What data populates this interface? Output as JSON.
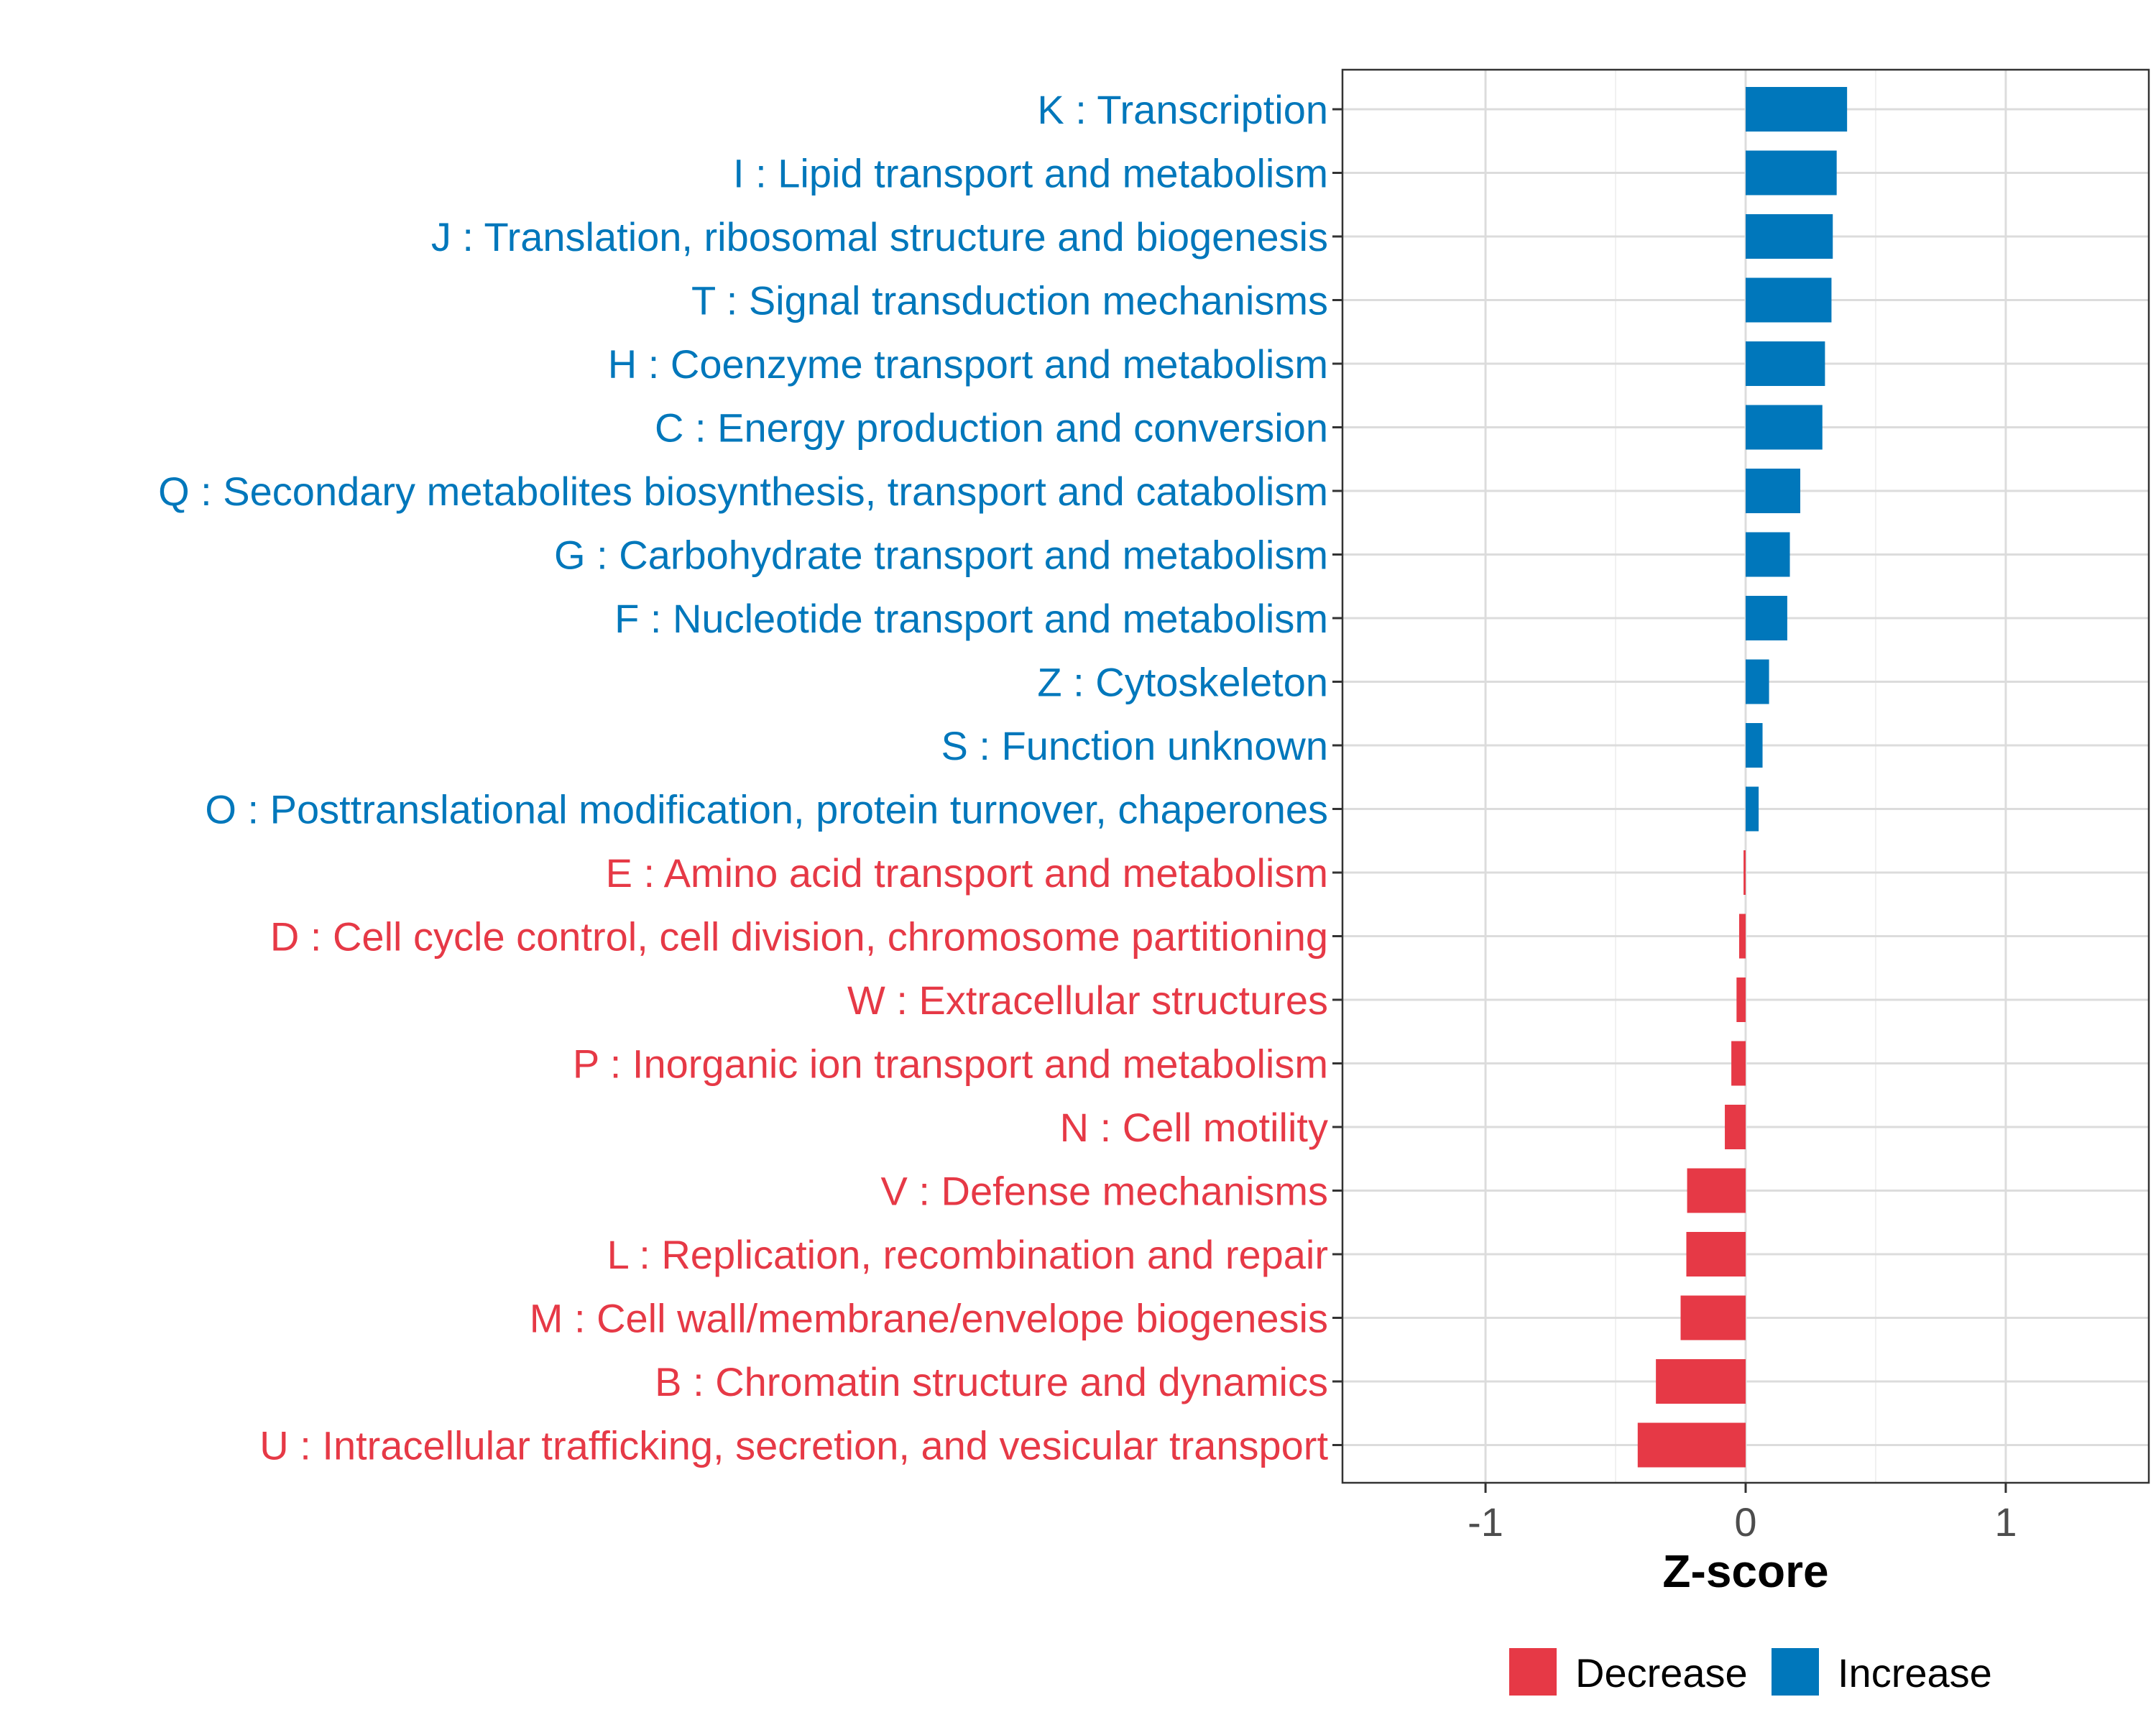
{
  "colors": {
    "increase": "#0077bb",
    "decrease": "#e63946",
    "grid": "#dcdcdc",
    "axis": "#333333"
  },
  "chart_data": {
    "type": "bar",
    "orientation": "horizontal",
    "title": "",
    "xlabel": "Z-score",
    "ylabel": "",
    "xlim": [
      -1.55,
      1.55
    ],
    "xticks": [
      -1,
      0,
      1
    ],
    "xtick_labels": [
      "-1",
      "0",
      "1"
    ],
    "grid": true,
    "legend_position": "bottom",
    "legend": [
      {
        "name": "Decrease",
        "color_key": "decrease"
      },
      {
        "name": "Increase",
        "color_key": "increase"
      }
    ],
    "bars": [
      {
        "label": "K : Transcription",
        "value": 0.39,
        "group": "Increase"
      },
      {
        "label": "I : Lipid transport and metabolism",
        "value": 0.35,
        "group": "Increase"
      },
      {
        "label": "J : Translation, ribosomal structure and biogenesis",
        "value": 0.335,
        "group": "Increase"
      },
      {
        "label": "T : Signal transduction mechanisms",
        "value": 0.33,
        "group": "Increase"
      },
      {
        "label": "H : Coenzyme transport and metabolism",
        "value": 0.305,
        "group": "Increase"
      },
      {
        "label": "C : Energy production and conversion",
        "value": 0.295,
        "group": "Increase"
      },
      {
        "label": "Q : Secondary metabolites biosynthesis, transport and catabolism",
        "value": 0.21,
        "group": "Increase"
      },
      {
        "label": "G : Carbohydrate transport and metabolism",
        "value": 0.17,
        "group": "Increase"
      },
      {
        "label": "F : Nucleotide transport and metabolism",
        "value": 0.16,
        "group": "Increase"
      },
      {
        "label": "Z : Cytoskeleton",
        "value": 0.09,
        "group": "Increase"
      },
      {
        "label": "S : Function unknown",
        "value": 0.065,
        "group": "Increase"
      },
      {
        "label": "O : Posttranslational modification, protein turnover, chaperones",
        "value": 0.05,
        "group": "Increase"
      },
      {
        "label": "E : Amino acid transport and metabolism",
        "value": -0.008,
        "group": "Decrease"
      },
      {
        "label": "D : Cell cycle control, cell division, chromosome partitioning",
        "value": -0.025,
        "group": "Decrease"
      },
      {
        "label": "W : Extracellular structures",
        "value": -0.035,
        "group": "Decrease"
      },
      {
        "label": "P : Inorganic ion transport and metabolism",
        "value": -0.055,
        "group": "Decrease"
      },
      {
        "label": "N : Cell motility",
        "value": -0.08,
        "group": "Decrease"
      },
      {
        "label": "V : Defense mechanisms",
        "value": -0.225,
        "group": "Decrease"
      },
      {
        "label": "L : Replication, recombination and repair",
        "value": -0.228,
        "group": "Decrease"
      },
      {
        "label": "M : Cell wall/membrane/envelope biogenesis",
        "value": -0.25,
        "group": "Decrease"
      },
      {
        "label": "B : Chromatin structure and dynamics",
        "value": -0.345,
        "group": "Decrease"
      },
      {
        "label": "U : Intracellular trafficking, secretion, and vesicular transport",
        "value": -0.415,
        "group": "Decrease"
      }
    ]
  }
}
